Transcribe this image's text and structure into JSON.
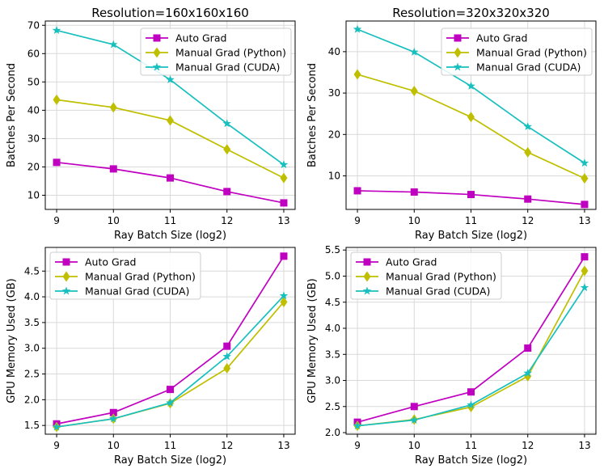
{
  "figure": {
    "series_style": [
      {
        "name": "Auto Grad",
        "color": "#c000c0",
        "marker": "square"
      },
      {
        "name": "Manual Grad (Python)",
        "color": "#bfbf00",
        "marker": "diamond"
      },
      {
        "name": "Manual Grad (CUDA)",
        "color": "#17bfbf",
        "marker": "star"
      }
    ]
  },
  "chart_data": [
    {
      "type": "line",
      "title": "Resolution=160x160x160",
      "xlabel": "Ray Batch Size (log2)",
      "ylabel": "Batches Per Second",
      "x": [
        9,
        10,
        11,
        12,
        13
      ],
      "xticks": [
        9,
        10,
        11,
        12,
        13
      ],
      "xlim": [
        8.8,
        13.2
      ],
      "ylim": [
        5,
        71.5
      ],
      "yticks": [
        10,
        20,
        30,
        40,
        50,
        60,
        70
      ],
      "ytick_labels": [
        "10",
        "20",
        "30",
        "40",
        "50",
        "60",
        "70"
      ],
      "grid": true,
      "legend": "upper right",
      "series": [
        {
          "name": "Auto Grad",
          "values": [
            21.6,
            19.3,
            16.1,
            11.3,
            7.3
          ]
        },
        {
          "name": "Manual Grad (Python)",
          "values": [
            43.7,
            41.0,
            36.4,
            26.2,
            16.1
          ]
        },
        {
          "name": "Manual Grad (CUDA)",
          "values": [
            68.2,
            63.2,
            50.8,
            35.3,
            20.8
          ]
        }
      ]
    },
    {
      "type": "line",
      "title": "Resolution=320x320x320",
      "xlabel": "Ray Batch Size (log2)",
      "ylabel": "Batches Per Second",
      "x": [
        9,
        10,
        11,
        12,
        13
      ],
      "xticks": [
        9,
        10,
        11,
        12,
        13
      ],
      "xlim": [
        8.8,
        13.2
      ],
      "ylim": [
        1.9,
        47.4
      ],
      "yticks": [
        10,
        20,
        30,
        40
      ],
      "ytick_labels": [
        "10",
        "20",
        "30",
        "40"
      ],
      "grid": true,
      "legend": "upper right",
      "series": [
        {
          "name": "Auto Grad",
          "values": [
            6.4,
            6.1,
            5.5,
            4.4,
            3.1
          ]
        },
        {
          "name": "Manual Grad (Python)",
          "values": [
            34.5,
            30.5,
            24.2,
            15.7,
            9.4
          ]
        },
        {
          "name": "Manual Grad (CUDA)",
          "values": [
            45.4,
            39.9,
            31.7,
            21.9,
            13.1
          ]
        }
      ]
    },
    {
      "type": "line",
      "title": "",
      "xlabel": "Ray Batch Size (log2)",
      "ylabel": "GPU Memory Used (GB)",
      "x": [
        9,
        10,
        11,
        12,
        13
      ],
      "xticks": [
        9,
        10,
        11,
        12,
        13
      ],
      "xlim": [
        8.8,
        13.2
      ],
      "ylim": [
        1.33,
        4.96
      ],
      "yticks": [
        1.5,
        2.0,
        2.5,
        3.0,
        3.5,
        4.0,
        4.5
      ],
      "ytick_labels": [
        "1.5",
        "2.0",
        "2.5",
        "3.0",
        "3.5",
        "4.0",
        "4.5"
      ],
      "grid": true,
      "legend": "upper left",
      "series": [
        {
          "name": "Auto Grad",
          "values": [
            1.53,
            1.75,
            2.2,
            3.04,
            4.79
          ]
        },
        {
          "name": "Manual Grad (Python)",
          "values": [
            1.47,
            1.63,
            1.93,
            2.61,
            3.9
          ]
        },
        {
          "name": "Manual Grad (CUDA)",
          "values": [
            1.47,
            1.63,
            1.94,
            2.84,
            4.02
          ]
        }
      ]
    },
    {
      "type": "line",
      "title": "",
      "xlabel": "Ray Batch Size (log2)",
      "ylabel": "GPU Memory Used (GB)",
      "x": [
        9,
        10,
        11,
        12,
        13
      ],
      "xticks": [
        9,
        10,
        11,
        12,
        13
      ],
      "xlim": [
        8.8,
        13.2
      ],
      "ylim": [
        1.97,
        5.55
      ],
      "yticks": [
        2.0,
        2.5,
        3.0,
        3.5,
        4.0,
        4.5,
        5.0,
        5.5
      ],
      "ytick_labels": [
        "2.0",
        "2.5",
        "3.0",
        "3.5",
        "4.0",
        "4.5",
        "5.0",
        "5.5"
      ],
      "grid": true,
      "legend": "upper left",
      "series": [
        {
          "name": "Auto Grad",
          "values": [
            2.2,
            2.5,
            2.78,
            3.62,
            5.37
          ]
        },
        {
          "name": "Manual Grad (Python)",
          "values": [
            2.13,
            2.25,
            2.49,
            3.08,
            5.1
          ]
        },
        {
          "name": "Manual Grad (CUDA)",
          "values": [
            2.13,
            2.24,
            2.53,
            3.14,
            4.78
          ]
        }
      ]
    }
  ]
}
